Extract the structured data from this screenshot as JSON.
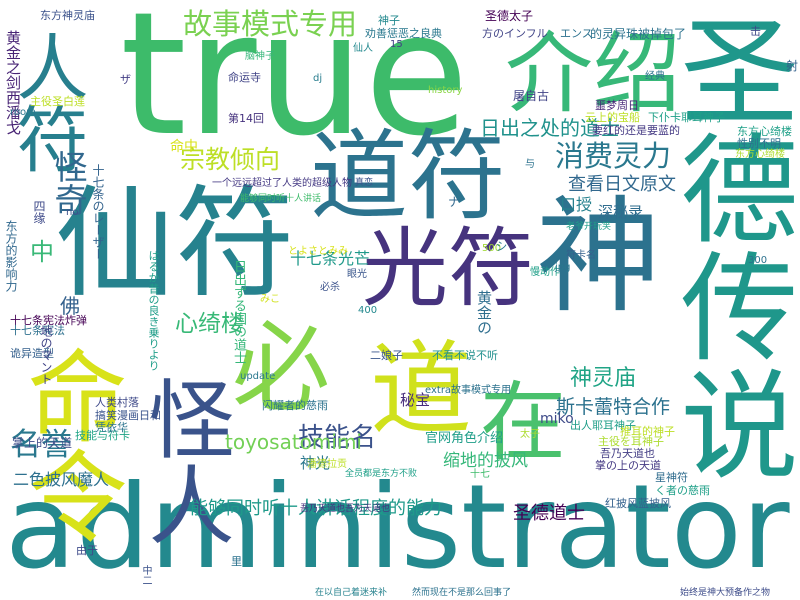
{
  "words": [
    {
      "text": "true",
      "color": "#3dbb6a"
    },
    {
      "text": "administrator",
      "color": "#23898e"
    },
    {
      "text": "道符",
      "color": "#2c738e"
    },
    {
      "text": "仙符",
      "color": "#26828e"
    },
    {
      "text": "光符",
      "color": "#46337e"
    },
    {
      "text": "神",
      "color": "#2c728e"
    },
    {
      "text": "圣德传说",
      "color": "#1f978b"
    },
    {
      "text": "介绍",
      "color": "#37b878"
    },
    {
      "text": "人符",
      "color": "#277f8e"
    },
    {
      "text": "怪人",
      "color": "#3a538b"
    },
    {
      "text": "命令",
      "color": "#d8e219"
    },
    {
      "text": "必",
      "color": "#86d549"
    },
    {
      "text": "道",
      "color": "#d0e11c"
    },
    {
      "text": "在",
      "color": "#4ac16d"
    },
    {
      "text": "故事模式专用",
      "color": "#7ad151"
    },
    {
      "text": "消费灵力",
      "color": "#2a788e"
    },
    {
      "text": "宗教倾向",
      "color": "#bddf26"
    },
    {
      "text": "怪奇",
      "color": "#31688e"
    },
    {
      "text": "心绮楼",
      "color": "#38b977"
    },
    {
      "text": "技能名",
      "color": "#3b528b"
    },
    {
      "text": "名誉",
      "color": "#2a788e"
    },
    {
      "text": "神灵庙",
      "color": "#20a486"
    },
    {
      "text": "toyosatomimi",
      "color": "#73d056"
    },
    {
      "text": "能够同时听十人讲话程度的能力",
      "color": "#1f9a8a"
    },
    {
      "text": "斯卡蕾特合作",
      "color": "#2c728e"
    },
    {
      "text": "日出之处的道士",
      "color": "#20928c"
    },
    {
      "text": "查看日文原文",
      "color": "#31688e"
    },
    {
      "text": "十七条光芒",
      "color": "#1f998a"
    },
    {
      "text": "缩地的披风",
      "color": "#35b779"
    },
    {
      "text": "圣德道士",
      "color": "#440154"
    },
    {
      "text": "二色披风魔人",
      "color": "#2d708e"
    },
    {
      "text": "佛",
      "color": "#34618d"
    },
    {
      "text": "中",
      "color": "#39b877"
    },
    {
      "text": "秘宝",
      "color": "#472d7b"
    },
    {
      "text": "神光",
      "color": "#2a778e"
    },
    {
      "text": "口授",
      "color": "#26818e"
    },
    {
      "text": "深秘录",
      "color": "#2f6c8e"
    },
    {
      "text": "黄金の",
      "color": "#2e6e8e"
    },
    {
      "text": "官网角色介绍",
      "color": "#1f9e89"
    },
    {
      "text": "miko",
      "color": "#3e4a89"
    },
    {
      "text": "命中",
      "color": "#d8e219"
    },
    {
      "text": "黄金之剑西潘戈",
      "color": "#482475"
    },
    {
      "text": "东方神灵庙",
      "color": "#3b528b"
    },
    {
      "text": "十七条宪法炸弹",
      "color": "#440154"
    },
    {
      "text": "诡异造型",
      "color": "#35608d"
    },
    {
      "text": "掌上的天道",
      "color": "#3e4c8a"
    },
    {
      "text": "技能与符卡",
      "color": "#20a486"
    },
    {
      "text": "搞笑漫画日和",
      "color": "#3a548c"
    },
    {
      "text": "人类村落",
      "color": "#3e4989"
    },
    {
      "text": "凭依华",
      "color": "#2c738e"
    },
    {
      "text": "圣德太子",
      "color": "#440154"
    },
    {
      "text": "神子",
      "color": "#23898e"
    },
    {
      "text": "劝善惩恶之良典",
      "color": "#2a788e"
    },
    {
      "text": "的灵异珠被掉包了",
      "color": "#2c728e"
    },
    {
      "text": "方のインフル",
      "color": "#414487"
    },
    {
      "text": "エンス",
      "color": "#2c718e"
    },
    {
      "text": "下仆卡耶耳神子",
      "color": "#1fa088"
    },
    {
      "text": "噩梦周日",
      "color": "#482878"
    },
    {
      "text": "云上的宝船",
      "color": "#bddf26"
    },
    {
      "text": "要红的还是要蓝的",
      "color": "#443983"
    },
    {
      "text": "东方心绮楼",
      "color": "#1fa088"
    },
    {
      "text": "性别不明",
      "color": "#2d708e"
    },
    {
      "text": "吾乃天道也",
      "color": "#433e85"
    },
    {
      "text": "掌の上の天道",
      "color": "#443983"
    },
    {
      "text": "星神符",
      "color": "#2f6c8e"
    },
    {
      "text": "く者の慈雨",
      "color": "#1fa088"
    },
    {
      "text": "红披风蓝披风",
      "color": "#34618d"
    },
    {
      "text": "主役を耳神子",
      "color": "#addc30"
    },
    {
      "text": "十七条宪法",
      "color": "#2d708e"
    },
    {
      "text": "出人耶耳神子",
      "color": "#1f9e89"
    },
    {
      "text": "闪耀者的慈雨",
      "color": "#2c738e"
    },
    {
      "text": "不看不说不听",
      "color": "#21908d"
    },
    {
      "text": "推耳的神子",
      "color": "#bddf26"
    },
    {
      "text": "二娘子",
      "color": "#39568c"
    },
    {
      "text": "经典",
      "color": "#2c728e"
    },
    {
      "text": "慢动作",
      "color": "#1fa088"
    },
    {
      "text": "命运寺",
      "color": "#414487"
    },
    {
      "text": "第14回",
      "color": "#46337e"
    },
    {
      "text": "主役圣白莲",
      "color": "#bddf26"
    },
    {
      "text": "history",
      "color": "#8bd646"
    },
    {
      "text": "update",
      "color": "#2a788e"
    },
    {
      "text": "屠自古",
      "color": "#414487"
    },
    {
      "text": "脑神子",
      "color": "#35b779"
    },
    {
      "text": "仙人",
      "color": "#23898e"
    },
    {
      "text": "十七条のレーザー",
      "color": "#33638d"
    },
    {
      "text": "四缘",
      "color": "#3e4a89"
    },
    {
      "text": "东方的影响力",
      "color": "#31688e"
    },
    {
      "text": "地のマント",
      "color": "#414487"
    },
    {
      "text": "日出ずる国の道士",
      "color": "#35b779"
    },
    {
      "text": "とよさとみみ",
      "color": "#d8e219"
    },
    {
      "text": "眼光",
      "color": "#39568c"
    },
    {
      "text": "必杀",
      "color": "#3b528b"
    },
    {
      "text": "符卡名",
      "color": "#35608d"
    },
    {
      "text": "老爷开玩笑",
      "color": "#1f9e89"
    },
    {
      "text": "一个远远超过了人类的超级人物",
      "color": "#443983"
    },
    {
      "text": "真恋",
      "color": "#3b528b"
    },
    {
      "text": "はるか昔の良き乗りより",
      "color": "#1f9e89"
    },
    {
      "text": "ザ",
      "color": "#433e85"
    },
    {
      "text": "room",
      "color": "#2a788e"
    },
    {
      "text": "no",
      "color": "#3b528b"
    },
    {
      "text": "jpg",
      "color": "#2a788e"
    },
    {
      "text": "dj",
      "color": "#287d8e"
    },
    {
      "text": "15",
      "color": "#433e85"
    },
    {
      "text": "300",
      "color": "#2c718e"
    },
    {
      "text": "400",
      "color": "#23898e"
    },
    {
      "text": "500",
      "color": "#a2da37"
    },
    {
      "text": "由于",
      "color": "#3e4a89"
    },
    {
      "text": "里",
      "color": "#2c728e"
    },
    {
      "text": "射",
      "color": "#34618d"
    },
    {
      "text": "击",
      "color": "#3e4989"
    },
    {
      "text": "みこ",
      "color": "#d0e11c"
    },
    {
      "text": "シ",
      "color": "#2a788e"
    },
    {
      "text": "ナ",
      "color": "#31688e"
    },
    {
      "text": "潘德拉贡",
      "color": "#bddf26"
    },
    {
      "text": "extra故事模式专用",
      "color": "#2c728e"
    },
    {
      "text": "全员都是东方不败",
      "color": "#1fa088"
    },
    {
      "text": "始终是神大预备作之物",
      "color": "#3e4c8a"
    },
    {
      "text": "在以自己着迷来补",
      "color": "#26828e"
    },
    {
      "text": "然而现在不是那么回事了",
      "color": "#2c728e"
    },
    {
      "text": "能够同时听十人讲话",
      "color": "#3dbb6a"
    },
    {
      "text": "太子",
      "color": "#addc30"
    },
    {
      "text": "与",
      "color": "#2c728e"
    },
    {
      "text": "十七",
      "color": "#3dbb6a"
    },
    {
      "text": "吾乃天道也吾为天道也",
      "color": "#46337e"
    },
    {
      "text": "中二",
      "color": "#3b528b"
    },
    {
      "text": "东方心绮楼",
      "color": "#addc30"
    }
  ]
}
